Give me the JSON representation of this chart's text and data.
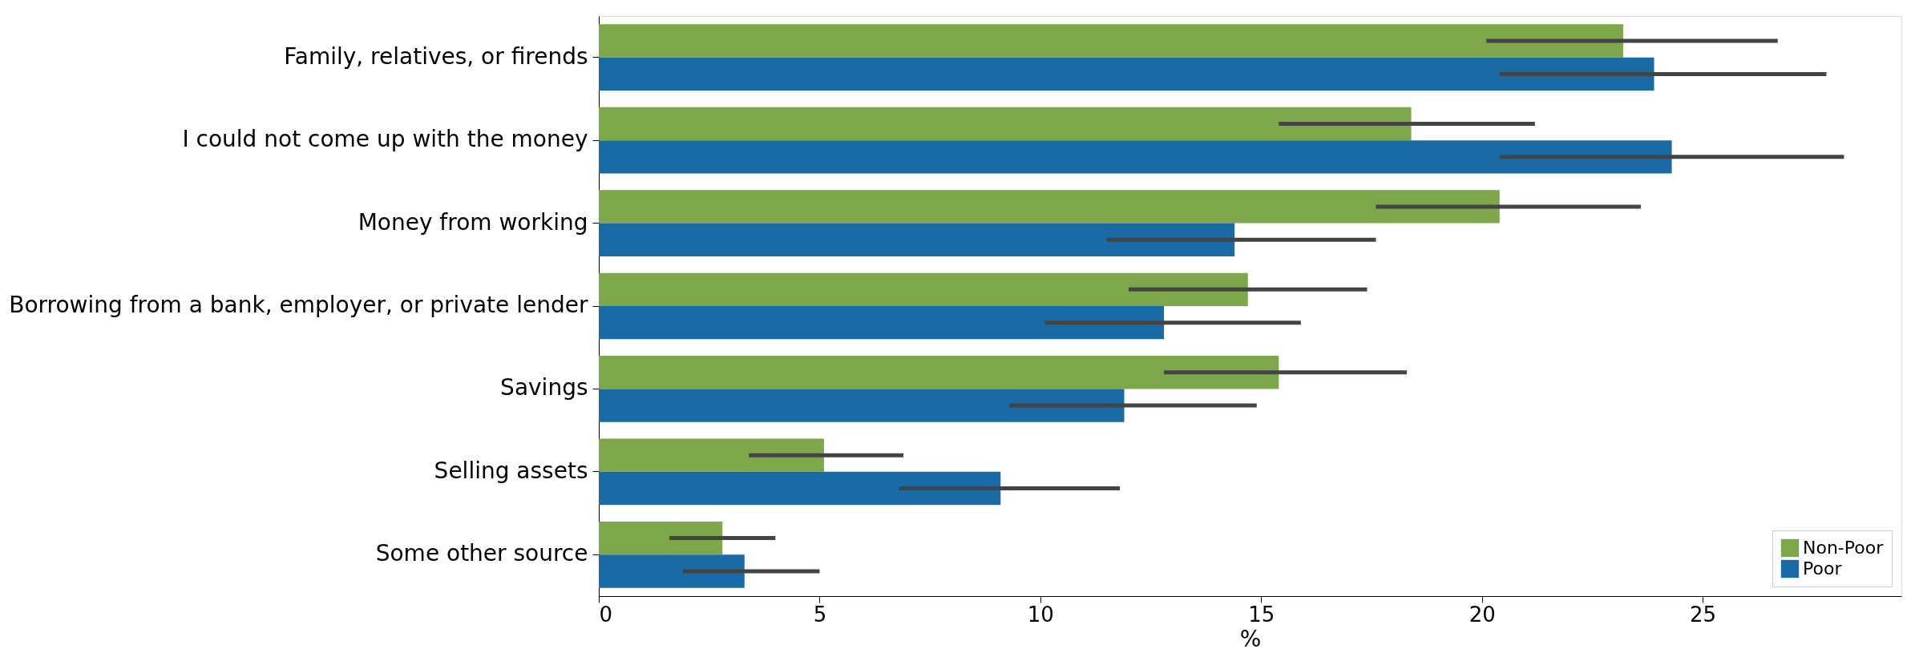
{
  "chart_data": {
    "type": "bar",
    "orientation": "horizontal",
    "xlabel": "%",
    "categories": [
      "Family, relatives, or firends",
      "I could not come up with the money",
      "Money from working",
      "Borrowing from a bank, employer, or private lender",
      "Savings",
      "Selling assets",
      "Some other source"
    ],
    "series": [
      {
        "name": "Non-Poor",
        "color": "#7ea64a",
        "values": [
          23.2,
          18.4,
          20.4,
          14.7,
          15.4,
          5.1,
          2.8
        ],
        "errors": [
          [
            20.1,
            26.7
          ],
          [
            15.4,
            21.2
          ],
          [
            17.6,
            23.6
          ],
          [
            12.0,
            17.4
          ],
          [
            12.8,
            18.3
          ],
          [
            3.4,
            6.9
          ],
          [
            1.6,
            4.0
          ]
        ]
      },
      {
        "name": "Poor",
        "color": "#1a6aa6",
        "values": [
          23.9,
          24.3,
          14.4,
          12.8,
          11.9,
          9.1,
          3.3
        ],
        "errors": [
          [
            20.4,
            27.8
          ],
          [
            20.4,
            28.2
          ],
          [
            11.5,
            17.6
          ],
          [
            10.1,
            15.9
          ],
          [
            9.3,
            14.9
          ],
          [
            6.8,
            11.8
          ],
          [
            1.9,
            5.0
          ]
        ]
      }
    ],
    "xlim": [
      0,
      29.5
    ],
    "xticks": [
      0,
      5,
      10,
      15,
      20,
      25
    ],
    "grid": false,
    "legend": "bottom right"
  }
}
